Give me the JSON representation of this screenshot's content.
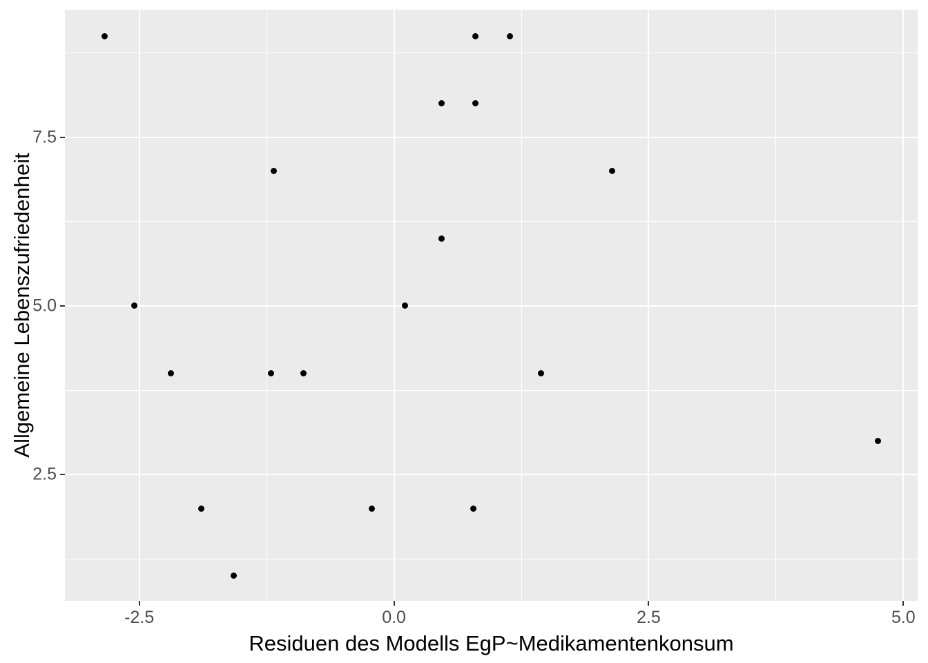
{
  "chart_data": {
    "type": "scatter",
    "title": "",
    "xlabel": "Residuen des Modells EgP~Medikamentenkonsum",
    "ylabel": "Allgemeine Lebenszufriedenheit",
    "xlim": [
      -3.23,
      5.14
    ],
    "ylim": [
      0.63,
      9.39
    ],
    "x_ticks": [
      -2.5,
      0.0,
      2.5,
      5.0
    ],
    "x_tick_labels": [
      "-2.5",
      "0.0",
      "2.5",
      "5.0"
    ],
    "y_ticks": [
      2.5,
      5.0,
      7.5
    ],
    "y_tick_labels": [
      "2.5",
      "5.0",
      "7.5"
    ],
    "x_minor_gridlines": [
      -1.25,
      1.25,
      3.75
    ],
    "y_minor_gridlines": [
      1.25,
      3.75,
      6.25,
      8.75
    ],
    "grid": "major-and-minor",
    "legend": "none",
    "points": [
      {
        "x": -2.84,
        "y": 9
      },
      {
        "x": 0.8,
        "y": 9
      },
      {
        "x": 1.14,
        "y": 9
      },
      {
        "x": 0.47,
        "y": 8
      },
      {
        "x": 0.8,
        "y": 8
      },
      {
        "x": -1.18,
        "y": 7
      },
      {
        "x": 2.14,
        "y": 7
      },
      {
        "x": 0.47,
        "y": 6
      },
      {
        "x": -2.55,
        "y": 5
      },
      {
        "x": 0.11,
        "y": 5
      },
      {
        "x": -2.19,
        "y": 4
      },
      {
        "x": -1.21,
        "y": 4
      },
      {
        "x": -0.89,
        "y": 4
      },
      {
        "x": 1.44,
        "y": 4
      },
      {
        "x": 4.75,
        "y": 3
      },
      {
        "x": -1.89,
        "y": 2
      },
      {
        "x": -0.22,
        "y": 2
      },
      {
        "x": 0.78,
        "y": 2
      },
      {
        "x": -1.57,
        "y": 1
      }
    ],
    "colors": {
      "page_bg": "#FFFFFF",
      "panel_bg": "#EBEBEB",
      "gridline": "#FFFFFF",
      "point": "#000000",
      "tick_text": "#4D4D4D",
      "axis_title_text": "#000000",
      "tick_mark": "#333333"
    }
  }
}
